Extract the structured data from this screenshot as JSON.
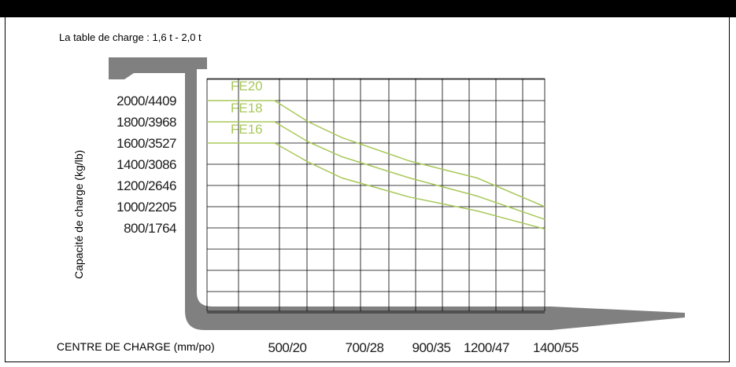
{
  "chart_data": {
    "type": "line",
    "title": "La table de charge : 1,6 t - 2,0 t",
    "xlabel": "CENTRE DE CHARGE (mm/po)",
    "ylabel": "Capacité de charge (kg/lb)",
    "x_ticks": [
      "500/20",
      "700/28",
      "900/35",
      "1200/47",
      "1400/55"
    ],
    "x_tick_values": [
      500,
      700,
      900,
      1200,
      1400
    ],
    "y_ticks": [
      "2000/4409",
      "1800/3968",
      "1600/3527",
      "1400/3086",
      "1200/2646",
      "1000/2205",
      "800/1764"
    ],
    "y_tick_values": [
      2000,
      1800,
      1600,
      1400,
      1200,
      1000,
      800
    ],
    "xlim": [
      400,
      1400
    ],
    "ylim": [
      0,
      2200
    ],
    "grid": true,
    "series": [
      {
        "name": "FE20",
        "x": [
          400,
          600,
          700,
          800,
          1000,
          1200,
          1400
        ],
        "y": [
          2000,
          2000,
          1800,
          1650,
          1430,
          1270,
          1000
        ]
      },
      {
        "name": "FE18",
        "x": [
          400,
          600,
          700,
          800,
          1000,
          1200,
          1400
        ],
        "y": [
          1800,
          1800,
          1610,
          1470,
          1270,
          1100,
          880
        ]
      },
      {
        "name": "FE16",
        "x": [
          400,
          600,
          700,
          800,
          1000,
          1200,
          1400
        ],
        "y": [
          1600,
          1600,
          1420,
          1270,
          1090,
          960,
          790
        ]
      }
    ],
    "series_color": "#a9c85a",
    "grid_color": "#000000",
    "fork_color": "#808080"
  }
}
